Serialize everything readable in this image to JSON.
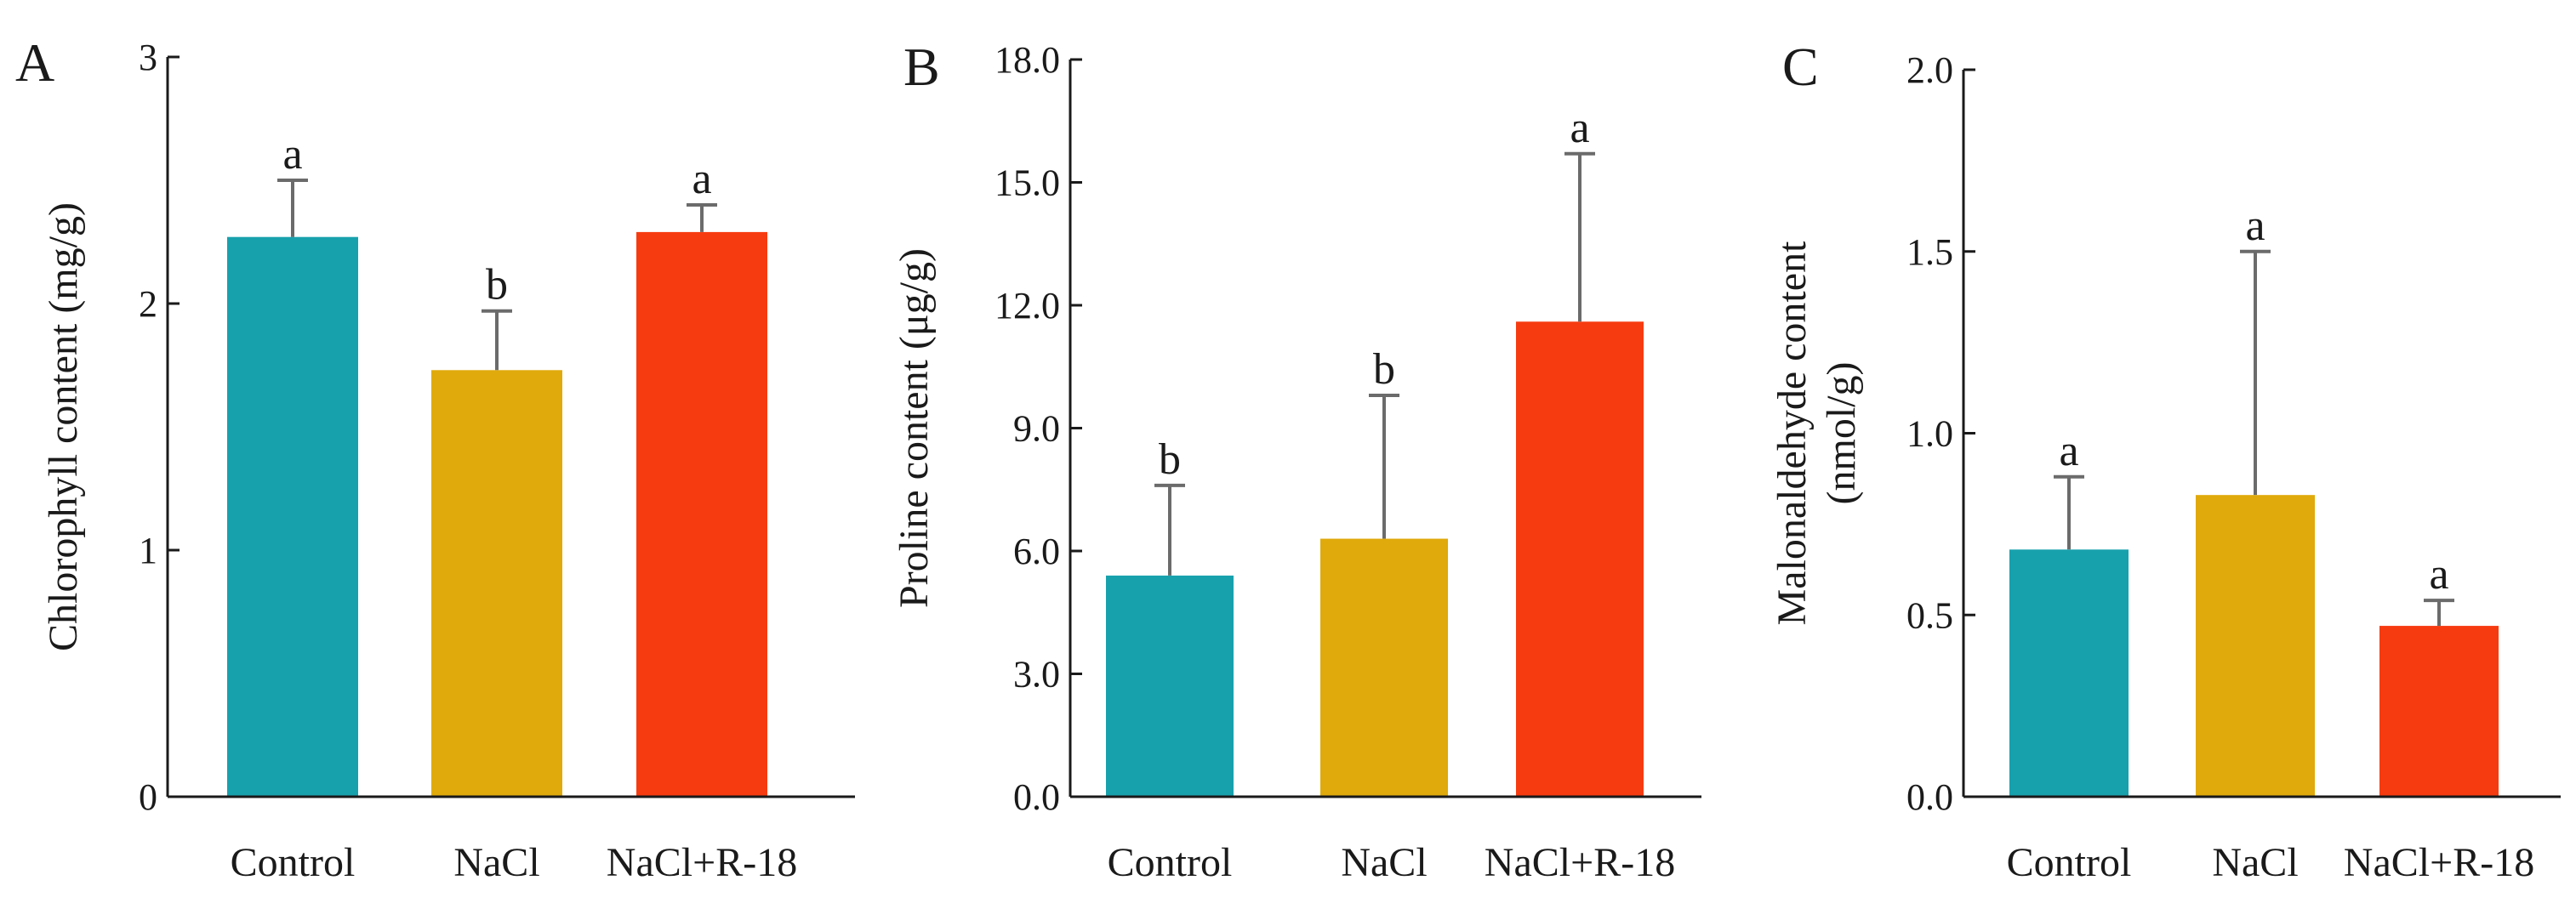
{
  "figure": {
    "panels": [
      {
        "id": "A",
        "letter": "A"
      },
      {
        "id": "B",
        "letter": "B"
      },
      {
        "id": "C",
        "letter": "C"
      }
    ]
  },
  "chart_data": [
    {
      "type": "bar",
      "panel": "A",
      "title": "",
      "xlabel": "",
      "ylabel": "Chlorophyll content (mg/g)",
      "ylabel_lines": [
        "Chlorophyll content (mg/g)"
      ],
      "ylim": [
        0,
        3
      ],
      "yticks": [
        0,
        1,
        2,
        3
      ],
      "ytick_labels": [
        "0",
        "1",
        "2",
        "3"
      ],
      "grid": false,
      "categories": [
        "Control",
        "NaCl",
        "NaCl+R-18"
      ],
      "values": [
        2.27,
        1.73,
        2.29
      ],
      "errors": [
        0.23,
        0.24,
        0.11
      ],
      "significance": [
        "a",
        "b",
        "a"
      ],
      "colors": [
        "#17a1ad",
        "#e0aa0c",
        "#f73b10"
      ]
    },
    {
      "type": "bar",
      "panel": "B",
      "title": "",
      "xlabel": "",
      "ylabel": "Proline content (μg/g)",
      "ylabel_lines": [
        "Proline content (μg/g)"
      ],
      "ylim": [
        0,
        18
      ],
      "yticks": [
        0,
        3,
        6,
        9,
        12,
        15,
        18
      ],
      "ytick_labels": [
        "0.0",
        "3.0",
        "6.0",
        "9.0",
        "12.0",
        "15.0",
        "18.0"
      ],
      "grid": false,
      "categories": [
        "Control",
        "NaCl",
        "NaCl+R-18"
      ],
      "values": [
        5.4,
        6.3,
        11.6
      ],
      "errors": [
        2.2,
        3.5,
        4.1
      ],
      "significance": [
        "b",
        "b",
        "a"
      ],
      "colors": [
        "#17a1ad",
        "#e0aa0c",
        "#f73b10"
      ]
    },
    {
      "type": "bar",
      "panel": "C",
      "title": "",
      "xlabel": "",
      "ylabel": "Malonaldehyde content (nmol/g)",
      "ylabel_lines": [
        "Malonaldehyde content",
        "(nmol/g)"
      ],
      "ylim": [
        0,
        2
      ],
      "yticks": [
        0,
        0.5,
        1,
        1.5,
        2
      ],
      "ytick_labels": [
        "0.0",
        "0.5",
        "1.0",
        "1.5",
        "2.0"
      ],
      "grid": false,
      "categories": [
        "Control",
        "NaCl",
        "NaCl+R-18"
      ],
      "values": [
        0.68,
        0.83,
        0.47
      ],
      "errors": [
        0.2,
        0.67,
        0.07
      ],
      "significance": [
        "a",
        "a",
        "a"
      ],
      "colors": [
        "#17a1ad",
        "#e0aa0c",
        "#f73b10"
      ]
    }
  ]
}
